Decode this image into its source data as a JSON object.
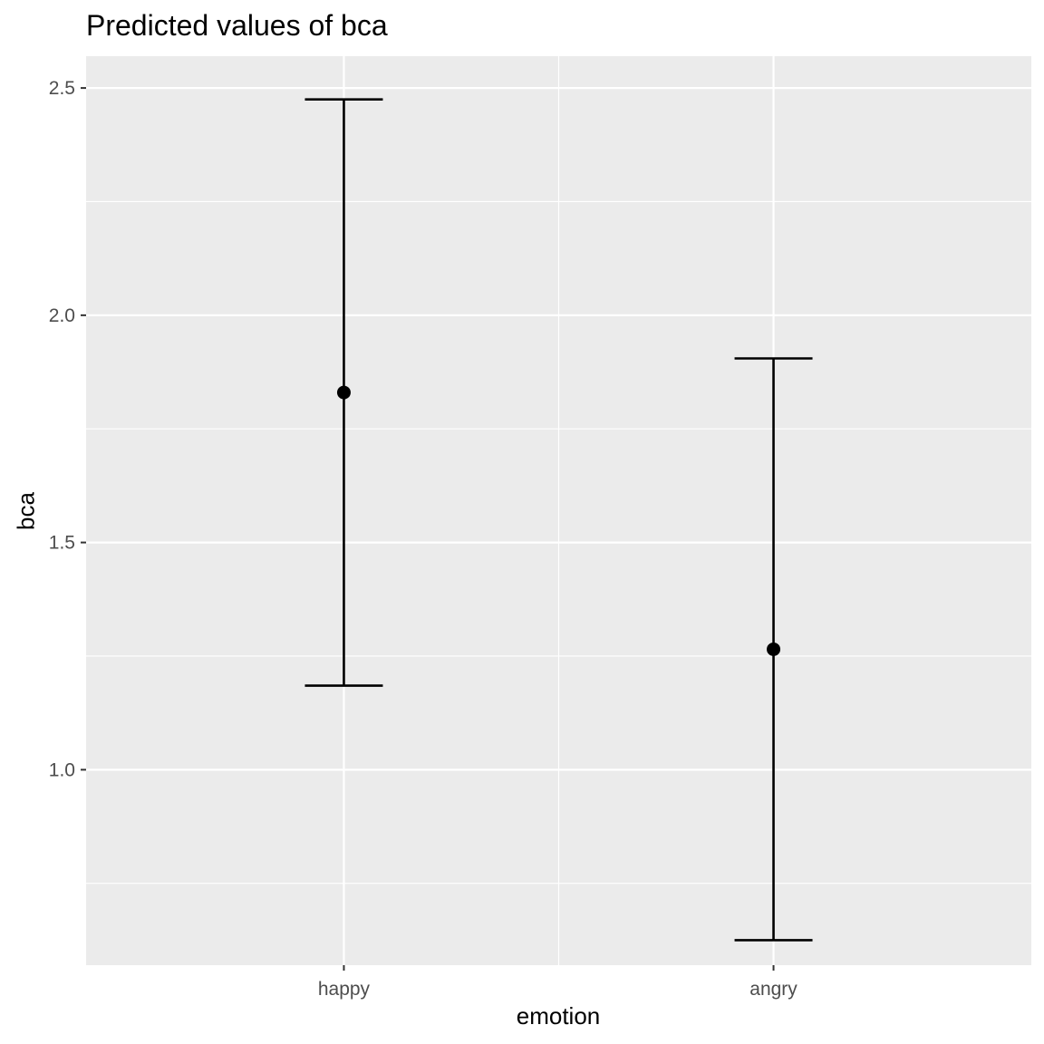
{
  "chart_data": {
    "type": "errorbar",
    "title": "Predicted values of bca",
    "xlabel": "emotion",
    "ylabel": "bca",
    "categories": [
      "happy",
      "angry"
    ],
    "values": [
      1.83,
      1.265
    ],
    "ci_low": [
      1.185,
      0.625
    ],
    "ci_high": [
      2.475,
      1.905
    ],
    "ylim": [
      0.57,
      2.57
    ],
    "yticks": [
      1.0,
      1.5,
      2.0,
      2.5
    ],
    "ytick_labels": [
      "1.0",
      "1.5",
      "2.0",
      "2.5"
    ],
    "grid": true,
    "panel_color": "#ebebeb",
    "mark_color": "#000000"
  }
}
